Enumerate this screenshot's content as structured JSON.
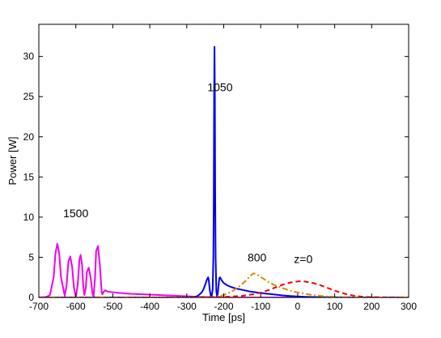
{
  "chart_data": {
    "type": "line",
    "title": "",
    "xlabel": "Time [ps]",
    "ylabel": "Power [W]",
    "xlim": [
      -700,
      300
    ],
    "ylim": [
      0,
      34
    ],
    "xticks": [
      -700,
      -600,
      -500,
      -400,
      -300,
      -200,
      -100,
      0,
      100,
      200,
      300
    ],
    "yticks": [
      0,
      5,
      10,
      15,
      20,
      25,
      30
    ],
    "grid": false,
    "legend": "none",
    "annotations": [
      {
        "text": "1500",
        "x": -600,
        "y": 10.0
      },
      {
        "text": "1050",
        "x": -210,
        "y": 25.7
      },
      {
        "text": "800",
        "x": -110,
        "y": 4.5
      },
      {
        "text": "z=0",
        "x": 15,
        "y": 4.3
      }
    ],
    "series": [
      {
        "color": "#ee00ee",
        "style": "solid",
        "x": [
          -700,
          -680,
          -670,
          -660,
          -655,
          -650,
          -645,
          -640,
          -630,
          -625,
          -620,
          -615,
          -610,
          -605,
          -600,
          -595,
          -590,
          -587,
          -583,
          -580,
          -577,
          -573,
          -570,
          -565,
          -560,
          -555,
          -552,
          -548,
          -545,
          -540,
          -535,
          -530,
          -528,
          -525,
          -520,
          -515,
          -510,
          -500,
          -480,
          -450,
          -400,
          -350,
          -300,
          -280,
          -250,
          -220,
          -200,
          -150,
          -100,
          -50,
          0,
          50,
          100,
          200,
          300
        ],
        "y": [
          0.0,
          0.05,
          0.3,
          2.5,
          5.5,
          6.7,
          5.5,
          2.5,
          0.2,
          1.5,
          4.5,
          5.1,
          3.8,
          1.2,
          0.1,
          1.5,
          4.8,
          5.3,
          4.0,
          1.5,
          0.3,
          1.2,
          3.2,
          3.7,
          2.5,
          0.5,
          0.1,
          2.5,
          5.8,
          6.4,
          4.0,
          0.6,
          0.4,
          0.7,
          0.9,
          0.75,
          0.7,
          0.65,
          0.55,
          0.45,
          0.35,
          0.25,
          0.15,
          0.1,
          0.05,
          0.02,
          0.01,
          0.0,
          0.0,
          0.0,
          0.0,
          0.0,
          0.0,
          0.0,
          0.0
        ]
      },
      {
        "color": "#0000ee",
        "style": "solid",
        "x": [
          -700,
          -300,
          -280,
          -270,
          -260,
          -255,
          -250,
          -245,
          -242,
          -240,
          -238,
          -235,
          -232,
          -230,
          -228,
          -227,
          -226,
          -225,
          -224,
          -223,
          -222,
          -220,
          -218,
          -216,
          -214,
          -212,
          -210,
          -205,
          -200,
          -190,
          -180,
          -170,
          -160,
          -150,
          -140,
          -130,
          -120,
          -100,
          -80,
          -60,
          -40,
          -20,
          0,
          20,
          50,
          100,
          150,
          200,
          300
        ],
        "y": [
          0.0,
          0.0,
          0.05,
          0.2,
          0.6,
          1.0,
          1.6,
          2.3,
          2.5,
          2.0,
          1.0,
          0.2,
          0.3,
          1.0,
          5.0,
          12.0,
          25.0,
          31.2,
          25.0,
          12.0,
          5.0,
          0.8,
          0.1,
          0.5,
          1.5,
          2.4,
          2.5,
          2.1,
          1.8,
          1.5,
          1.3,
          1.15,
          1.05,
          0.95,
          0.85,
          0.75,
          0.68,
          0.55,
          0.45,
          0.35,
          0.25,
          0.18,
          0.12,
          0.08,
          0.04,
          0.01,
          0.0,
          0.0,
          0.0
        ]
      },
      {
        "color": "#dd8800",
        "style": "dashdot",
        "x": [
          -700,
          -300,
          -250,
          -220,
          -200,
          -180,
          -160,
          -140,
          -130,
          -125,
          -120,
          -115,
          -110,
          -100,
          -90,
          -80,
          -60,
          -40,
          -20,
          0,
          20,
          40,
          60,
          80,
          100,
          120,
          150,
          200,
          300
        ],
        "y": [
          0.0,
          0.0,
          0.02,
          0.1,
          0.3,
          0.7,
          1.3,
          2.1,
          2.6,
          2.8,
          3.0,
          2.95,
          2.85,
          2.55,
          2.25,
          1.95,
          1.5,
          1.15,
          0.85,
          0.62,
          0.45,
          0.3,
          0.2,
          0.12,
          0.07,
          0.03,
          0.01,
          0.0,
          0.0
        ]
      },
      {
        "color": "#ee0000",
        "style": "dashed",
        "x": [
          -700,
          -300,
          -250,
          -200,
          -150,
          -120,
          -100,
          -80,
          -60,
          -40,
          -20,
          0,
          10,
          20,
          40,
          60,
          80,
          100,
          120,
          140,
          160,
          180,
          200,
          250,
          300
        ],
        "y": [
          0.0,
          0.0,
          0.02,
          0.06,
          0.2,
          0.4,
          0.6,
          0.9,
          1.25,
          1.6,
          1.85,
          2.0,
          2.02,
          1.98,
          1.82,
          1.55,
          1.2,
          0.85,
          0.55,
          0.32,
          0.17,
          0.08,
          0.04,
          0.01,
          0.0
        ]
      }
    ]
  }
}
